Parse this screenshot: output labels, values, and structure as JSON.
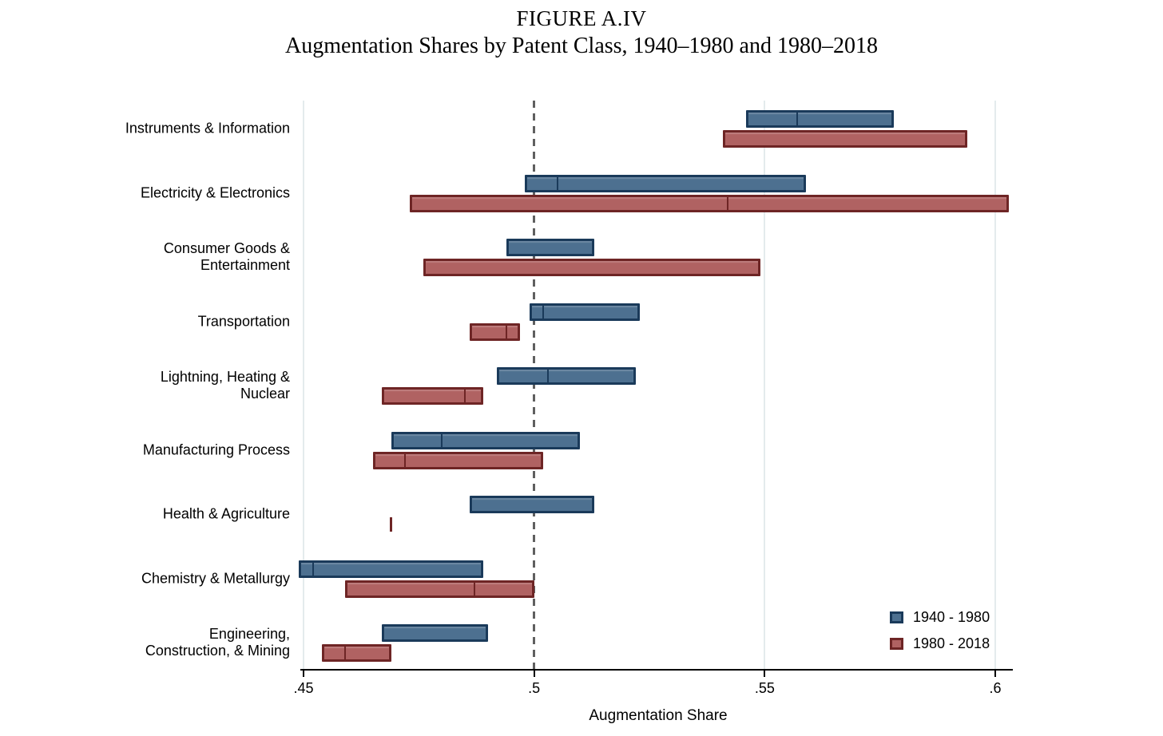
{
  "title": "FIGURE A.IV",
  "subtitle": "Augmentation Shares by Patent Class, 1940–1980 and 1980–2018",
  "xlabel": "Augmentation Share",
  "legend": [
    {
      "label": "1940 - 1980"
    },
    {
      "label": "1980 - 2018"
    }
  ],
  "colors": {
    "series1_fill": "#4d7090",
    "series1_border": "#1a3a5a",
    "series2_fill": "#b06262",
    "series2_border": "#6e2525",
    "gridline": "#e4ebed",
    "reference_line": "#5f5f5f",
    "axis": "#000000"
  },
  "chart_data": {
    "type": "bar",
    "variant": "horizontal-range-bars",
    "title": "FIGURE A.IV — Augmentation Shares by Patent Class, 1940–1980 and 1980–2018",
    "xlabel": "Augmentation Share",
    "xlim": [
      0.444,
      0.607
    ],
    "grid": "vertical-light",
    "legend_position": "bottom-right-inside",
    "reference_line": 0.5,
    "x_ticks": [
      {
        "value": 0.45,
        "label": ".45"
      },
      {
        "value": 0.5,
        "label": ".5"
      },
      {
        "value": 0.55,
        "label": ".55"
      },
      {
        "value": 0.6,
        "label": ".6"
      }
    ],
    "categories": [
      "Instruments & Information",
      "Electricity & Electronics",
      "Consumer Goods &\nEntertainment",
      "Transportation",
      "Lightning, Heating &\nNuclear",
      "Manufacturing Process",
      "Health & Agriculture",
      "Chemistry & Metallurgy",
      "Engineering,\nConstruction, & Mining"
    ],
    "series": [
      {
        "name": "1940 - 1980",
        "fill": "#4d7090",
        "border": "#1a3a5a",
        "ranges_note": "each entry is [low, high, marker] of augmentation share; marker null when not visible",
        "ranges": [
          [
            0.546,
            0.578,
            0.557
          ],
          [
            0.498,
            0.559,
            0.505
          ],
          [
            0.494,
            0.513,
            null
          ],
          [
            0.499,
            0.523,
            0.502
          ],
          [
            0.492,
            0.522,
            0.503
          ],
          [
            0.469,
            0.51,
            0.48
          ],
          [
            0.486,
            0.513,
            null
          ],
          [
            0.449,
            0.489,
            0.452
          ],
          [
            0.467,
            0.49,
            null
          ]
        ]
      },
      {
        "name": "1980 - 2018",
        "fill": "#b06262",
        "border": "#6e2525",
        "ranges": [
          [
            0.541,
            0.594,
            null
          ],
          [
            0.473,
            0.603,
            0.542
          ],
          [
            0.476,
            0.549,
            null
          ],
          [
            0.486,
            0.497,
            0.494
          ],
          [
            0.467,
            0.489,
            0.485
          ],
          [
            0.465,
            0.502,
            0.472
          ],
          [
            0.469,
            0.469,
            null
          ],
          [
            0.459,
            0.5,
            0.487
          ],
          [
            0.454,
            0.469,
            0.459
          ]
        ]
      }
    ]
  }
}
